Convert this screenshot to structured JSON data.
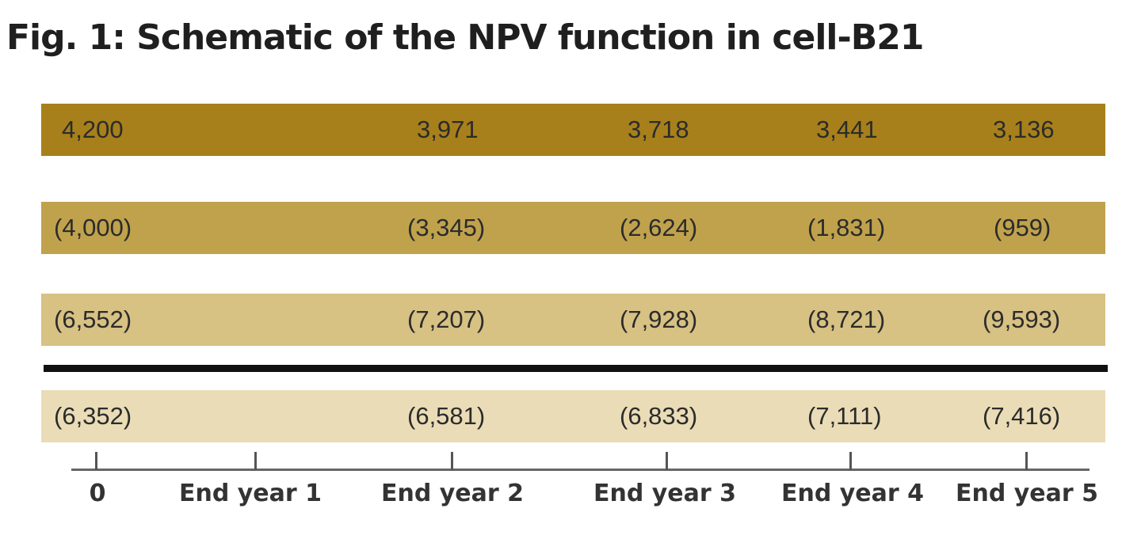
{
  "title": "Fig. 1: Schematic of the NPV function in cell-B21",
  "colors": {
    "row_1": "#a7801b",
    "row_2": "#c0a24d",
    "row_3": "#d7c183",
    "row_4": "#eadcb6",
    "separator": "#111111"
  },
  "rows": [
    {
      "values": [
        "4,200",
        "3,971",
        "3,718",
        "3,441",
        "3,136"
      ]
    },
    {
      "values": [
        "(4,000)",
        "(3,345)",
        "(2,624)",
        "(1,831)",
        "(959)"
      ]
    },
    {
      "values": [
        "(6,552)",
        "(7,207)",
        "(7,928)",
        "(8,721)",
        "(9,593)"
      ]
    },
    {
      "values": [
        "(6,352)",
        "(6,581)",
        "(6,833)",
        "(7,111)",
        "(7,416)"
      ]
    }
  ],
  "axis": {
    "labels": [
      "0",
      "End year 1",
      "End year 2",
      "End year 3",
      "End year 4",
      "End year 5"
    ]
  }
}
